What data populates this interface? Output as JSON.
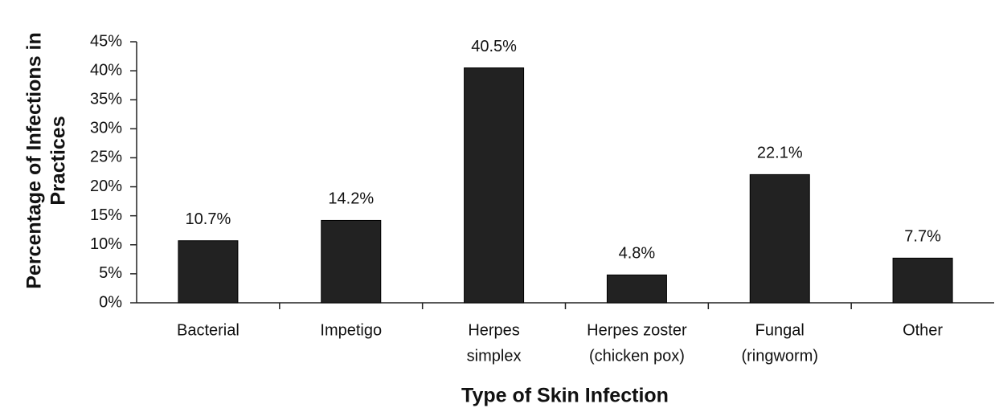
{
  "chart_data": {
    "type": "bar",
    "ylabel": [
      "Percentage of Infections in",
      "Practices"
    ],
    "xlabel": "Type of Skin Infection",
    "categories": [
      [
        "Bacterial"
      ],
      [
        "Impetigo"
      ],
      [
        "Herpes",
        "simplex"
      ],
      [
        "Herpes zoster",
        "(chicken pox)"
      ],
      [
        "Fungal",
        "(ringworm)"
      ],
      [
        "Other"
      ]
    ],
    "values": [
      10.7,
      14.2,
      40.5,
      4.8,
      22.1,
      7.7
    ],
    "value_labels": [
      "10.7%",
      "14.2%",
      "40.5%",
      "4.8%",
      "22.1%",
      "7.7%"
    ],
    "color": "#222222",
    "ylim": [
      0,
      45
    ],
    "yticks": [
      {
        "value": 0,
        "label": "0%"
      },
      {
        "value": 5,
        "label": "5%"
      },
      {
        "value": 10,
        "label": "10%"
      },
      {
        "value": 15,
        "label": "15%"
      },
      {
        "value": 20,
        "label": "20%"
      },
      {
        "value": 25,
        "label": "25%"
      },
      {
        "value": 30,
        "label": "30%"
      },
      {
        "value": 35,
        "label": "35%"
      },
      {
        "value": 40,
        "label": "40%"
      },
      {
        "value": 45,
        "label": "45%"
      }
    ]
  }
}
